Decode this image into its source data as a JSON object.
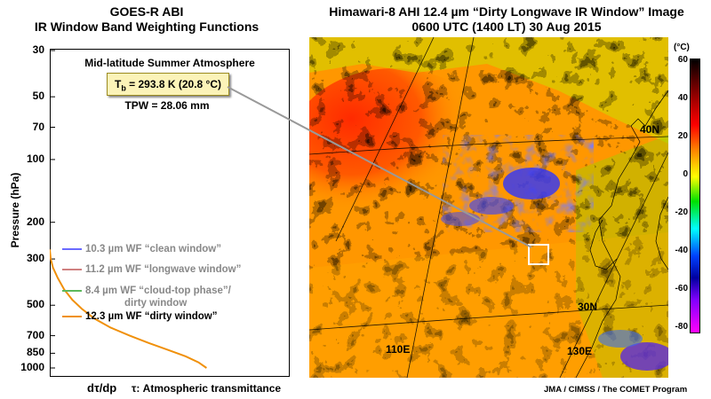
{
  "left_panel": {
    "title_line1": "GOES-R ABI",
    "title_line2": "IR Window Band Weighting Functions",
    "atmosphere": "Mid-latitude Summer Atmosphere",
    "tb": "293.8 K (20.8 °C)",
    "tpw": "TPW = 28.06 mm",
    "ylabel": "Pressure (hPa)",
    "xlabel_left": "dτ/dp",
    "xlabel_right": "τ: Atmospheric transmittance"
  },
  "right_panel": {
    "title_line1": "Himawari-8 AHI 12.4 µm “Dirty Longwave IR Window” Image",
    "title_line2": "0600 UTC (1400 LT)  30 Aug 2015",
    "lat_labels": [
      "40N",
      "30N"
    ],
    "lon_labels": [
      "110E",
      "130E"
    ],
    "credit": "JMA / CIMSS / The COMET Program"
  },
  "colorbar": {
    "unit": "(°C)",
    "ticks": [
      "60",
      "40",
      "20",
      "0",
      "-20",
      "-40",
      "-60",
      "-80"
    ]
  },
  "chart_data": {
    "type": "line",
    "title": "IR Window Band Weighting Functions",
    "ylabel": "Pressure (hPa)",
    "y_scale": "log",
    "y_reversed": true,
    "ylim": [
      30,
      1000
    ],
    "yticks": [
      "30",
      "50",
      "70",
      "100",
      "200",
      "300",
      "500",
      "700",
      "850",
      "1000"
    ],
    "legend": [
      {
        "label": "10.3 µm WF “clean window”",
        "color": "#6a6aff"
      },
      {
        "label": "11.2 µm WF “longwave window”",
        "color": "#d08080"
      },
      {
        "label": "8.4 µm WF “cloud-top phase”/",
        "label2": "dirty window",
        "color": "#5cb85c"
      },
      {
        "label": "12.3 µm WF “dirty window”",
        "color": "#f0900a"
      }
    ],
    "series": [
      {
        "name": "12.3 µm WF “dirty window”",
        "color": "#f0900a",
        "points": [
          [
            0.0,
            270
          ],
          [
            0.006,
            300
          ],
          [
            0.02,
            330
          ],
          [
            0.05,
            370
          ],
          [
            0.09,
            420
          ],
          [
            0.14,
            470
          ],
          [
            0.2,
            520
          ],
          [
            0.28,
            580
          ],
          [
            0.38,
            640
          ],
          [
            0.5,
            700
          ],
          [
            0.62,
            760
          ],
          [
            0.74,
            820
          ],
          [
            0.85,
            880
          ],
          [
            0.93,
            940
          ],
          [
            0.98,
            1000
          ]
        ]
      }
    ]
  }
}
